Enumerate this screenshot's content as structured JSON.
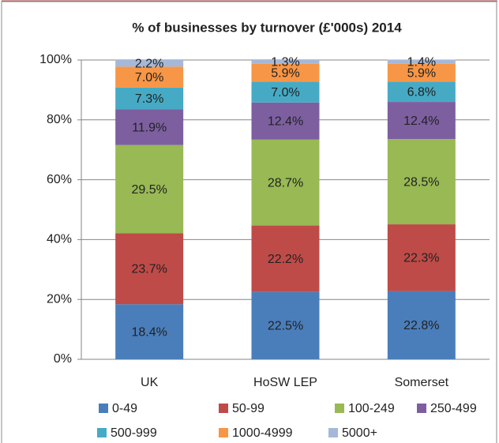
{
  "chart_data": {
    "type": "stacked_bar",
    "title": "% of businesses by turnover (£'000s) 2014",
    "categories": [
      "UK",
      "HoSW LEP",
      "Somerset"
    ],
    "series": [
      {
        "name": "0-49",
        "color": "#4a7ebb",
        "values": [
          18.4,
          22.5,
          22.8
        ],
        "value_labels": [
          "18.4%",
          "22.5%",
          "22.8%"
        ]
      },
      {
        "name": "50-99",
        "color": "#be4b48",
        "values": [
          23.7,
          22.2,
          22.3
        ],
        "value_labels": [
          "23.7%",
          "22.2%",
          "22.3%"
        ]
      },
      {
        "name": "100-249",
        "color": "#98b954",
        "values": [
          29.5,
          28.7,
          28.5
        ],
        "value_labels": [
          "29.5%",
          "28.7%",
          "28.5%"
        ]
      },
      {
        "name": "250-499",
        "color": "#7d5fa0",
        "values": [
          11.9,
          12.4,
          12.4
        ],
        "value_labels": [
          "11.9%",
          "12.4%",
          "12.4%"
        ]
      },
      {
        "name": "500-999",
        "color": "#46aac5",
        "values": [
          7.3,
          7.0,
          6.8
        ],
        "value_labels": [
          "7.3%",
          "7.0%",
          "6.8%"
        ]
      },
      {
        "name": "1000-4999",
        "color": "#f79646",
        "values": [
          7.0,
          5.9,
          5.9
        ],
        "value_labels": [
          "7.0%",
          "5.9%",
          "5.9%"
        ]
      },
      {
        "name": "5000+",
        "color": "#a5b8d9",
        "values": [
          2.2,
          1.3,
          1.4
        ],
        "value_labels": [
          "2.2%",
          "1.3%",
          "1.4%"
        ]
      }
    ],
    "ylim": [
      0,
      100
    ],
    "yticks": [
      {
        "value": 0,
        "label": "0%"
      },
      {
        "value": 20,
        "label": "20%"
      },
      {
        "value": 40,
        "label": "40%"
      },
      {
        "value": 60,
        "label": "60%"
      },
      {
        "value": 80,
        "label": "80%"
      },
      {
        "value": 100,
        "label": "100%"
      }
    ],
    "grid": true
  }
}
